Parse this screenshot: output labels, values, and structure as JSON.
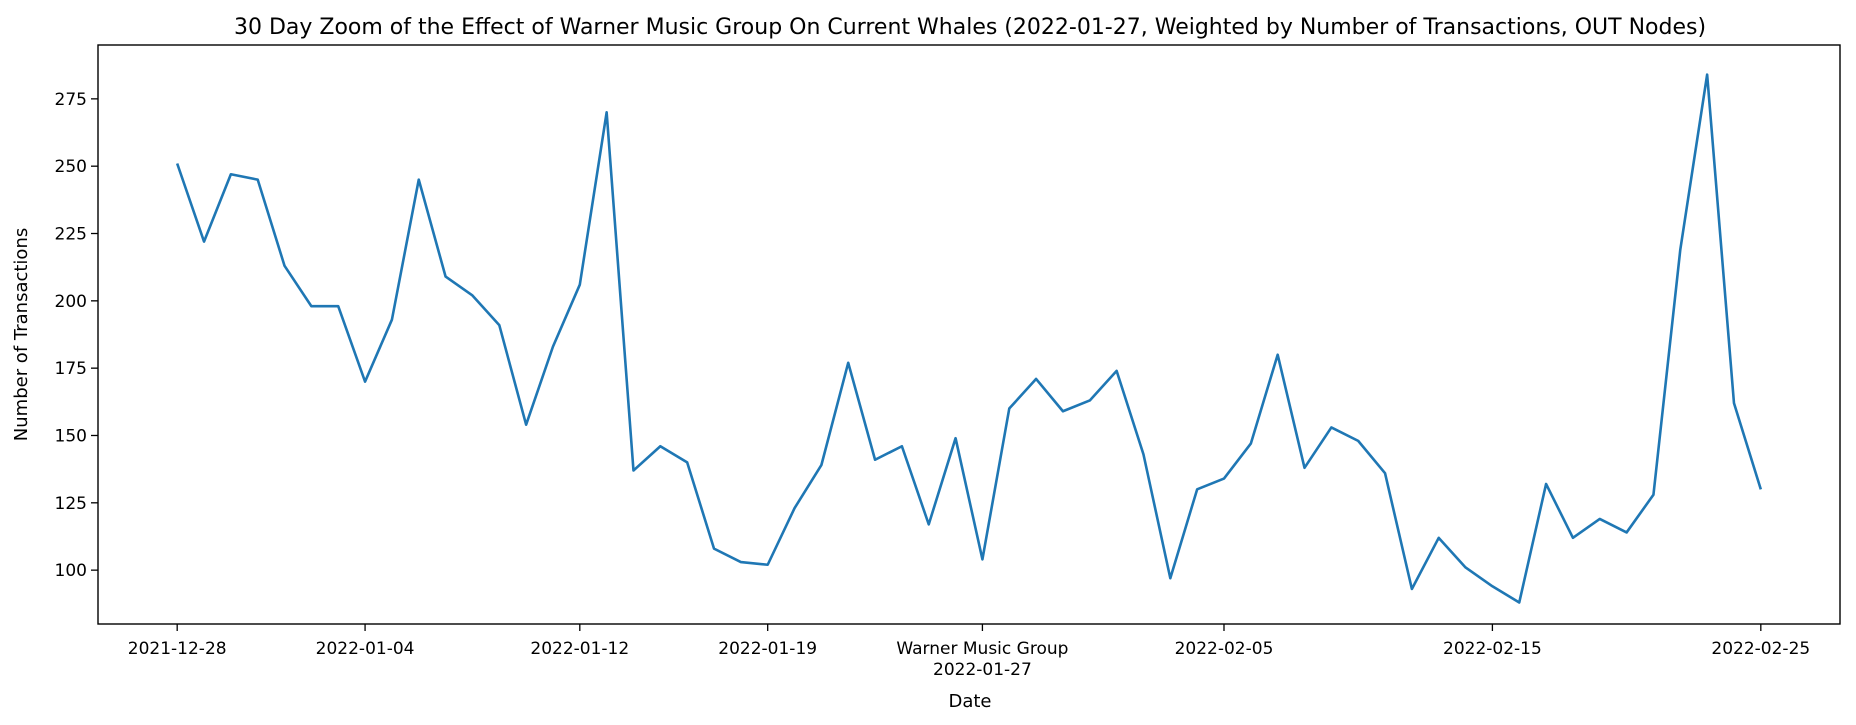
{
  "chart_data": {
    "type": "line",
    "title": "30 Day Zoom of the Effect of Warner Music Group On Current Whales (2022-01-27, Weighted by Number of Transactions, OUT Nodes)",
    "xlabel": "Date",
    "ylabel": "Number of Transactions",
    "ylim": [
      80,
      295
    ],
    "y_ticks": [
      100,
      125,
      150,
      175,
      200,
      225,
      250,
      275
    ],
    "x_ticks": [
      {
        "date": "2021-12-28",
        "label": "2021-12-28"
      },
      {
        "date": "2022-01-04",
        "label": "2022-01-04"
      },
      {
        "date": "2022-01-12",
        "label": "2022-01-12"
      },
      {
        "date": "2022-01-19",
        "label": "2022-01-19"
      },
      {
        "date": "2022-01-27",
        "label": "Warner Music Group\n2022-01-27"
      },
      {
        "date": "2022-02-05",
        "label": "2022-02-05"
      },
      {
        "date": "2022-02-15",
        "label": "2022-02-15"
      },
      {
        "date": "2022-02-25",
        "label": "2022-02-25"
      }
    ],
    "series": [
      {
        "color": "#1f77b4",
        "dates": [
          "2021-12-28",
          "2021-12-29",
          "2021-12-30",
          "2021-12-31",
          "2022-01-01",
          "2022-01-02",
          "2022-01-03",
          "2022-01-04",
          "2022-01-05",
          "2022-01-06",
          "2022-01-07",
          "2022-01-08",
          "2022-01-09",
          "2022-01-10",
          "2022-01-11",
          "2022-01-12",
          "2022-01-13",
          "2022-01-14",
          "2022-01-15",
          "2022-01-16",
          "2022-01-17",
          "2022-01-18",
          "2022-01-19",
          "2022-01-20",
          "2022-01-21",
          "2022-01-22",
          "2022-01-23",
          "2022-01-24",
          "2022-01-25",
          "2022-01-26",
          "2022-01-27",
          "2022-01-28",
          "2022-01-29",
          "2022-01-30",
          "2022-01-31",
          "2022-02-01",
          "2022-02-02",
          "2022-02-03",
          "2022-02-04",
          "2022-02-05",
          "2022-02-06",
          "2022-02-07",
          "2022-02-08",
          "2022-02-09",
          "2022-02-10",
          "2022-02-11",
          "2022-02-12",
          "2022-02-13",
          "2022-02-14",
          "2022-02-15",
          "2022-02-16",
          "2022-02-17",
          "2022-02-18",
          "2022-02-19",
          "2022-02-20",
          "2022-02-21",
          "2022-02-22",
          "2022-02-23",
          "2022-02-24",
          "2022-02-25"
        ],
        "values": [
          251,
          222,
          247,
          245,
          213,
          198,
          198,
          170,
          193,
          245,
          209,
          202,
          191,
          154,
          183,
          206,
          270,
          137,
          146,
          140,
          108,
          103,
          102,
          123,
          139,
          177,
          141,
          146,
          117,
          149,
          104,
          160,
          171,
          159,
          163,
          174,
          143,
          97,
          130,
          134,
          147,
          180,
          138,
          153,
          148,
          136,
          93,
          112,
          101,
          94,
          88,
          132,
          112,
          119,
          114,
          128,
          219,
          284,
          162,
          130
        ]
      }
    ]
  }
}
